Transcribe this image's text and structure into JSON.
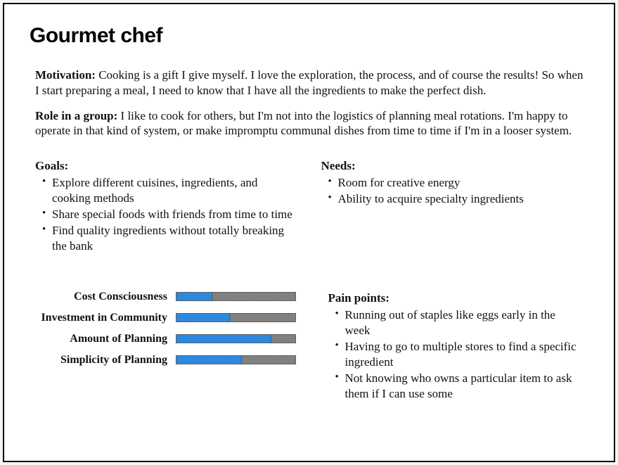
{
  "title": "Gourmet chef",
  "motivation": {
    "label": "Motivation:",
    "text": "Cooking is a gift I give myself. I love the exploration, the process, and of course the results! So when I start preparing a meal, I need to know that I have all the ingredients to make the perfect dish."
  },
  "role": {
    "label": "Role in a group:",
    "text": "I like to cook for others, but I'm not into the logistics of planning meal rotations. I'm happy to operate in that kind of system, or make impromptu communal dishes from time to time if I'm in a looser system."
  },
  "goals": {
    "label": "Goals:",
    "items": [
      "Explore different cuisines, ingredients, and cooking methods",
      "Share special foods with friends from time to time",
      "Find quality ingredients without totally breaking the bank"
    ]
  },
  "needs": {
    "label": "Needs:",
    "items": [
      "Room for creative energy",
      "Ability to acquire specialty ingredients"
    ]
  },
  "bars": {
    "track_color": "#808080",
    "fill_color": "#2d88e0",
    "items": [
      {
        "label": "Cost Consciousness",
        "pct": 30
      },
      {
        "label": "Investment in Community",
        "pct": 45
      },
      {
        "label": "Amount of Planning",
        "pct": 80
      },
      {
        "label": "Simplicity of Planning",
        "pct": 55
      }
    ]
  },
  "pain": {
    "label": "Pain points:",
    "items": [
      "Running out of staples like eggs early in the week",
      "Having to go to multiple stores to find a specific ingredient",
      "Not knowing who owns a particular item to ask them if I can use some"
    ]
  }
}
